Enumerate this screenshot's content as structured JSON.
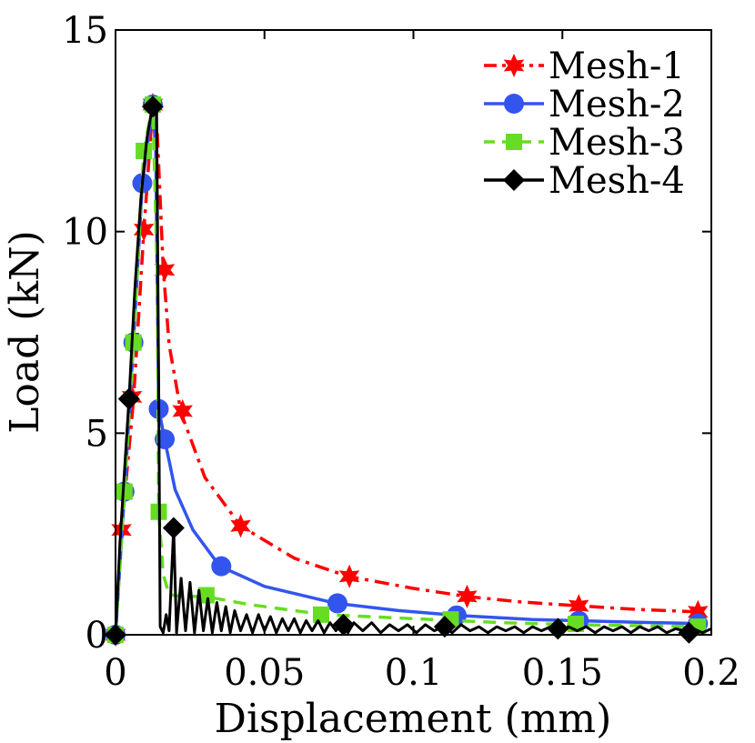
{
  "chart_data": {
    "type": "line",
    "title": "",
    "xlabel": "Displacement (mm)",
    "ylabel": "Load (kN)",
    "xlim": [
      0,
      0.2
    ],
    "ylim": [
      0,
      15
    ],
    "grid": false,
    "legend_position": "top-right",
    "x_ticks": [
      0,
      0.05,
      0.1,
      0.15,
      0.2
    ],
    "x_tick_labels": [
      "0",
      "0.05",
      "0.1",
      "0.15",
      "0.2"
    ],
    "y_ticks": [
      0,
      5,
      10,
      15
    ],
    "y_tick_labels": [
      "0",
      "5",
      "10",
      "15"
    ],
    "series": [
      {
        "name": "Mesh-1",
        "color": "#ff0000",
        "dash": "dashdot",
        "marker": "star",
        "line": [
          [
            0,
            0
          ],
          [
            0.002,
            2.6
          ],
          [
            0.006,
            5.8
          ],
          [
            0.0095,
            10.0
          ],
          [
            0.0125,
            13.1
          ],
          [
            0.014,
            12.5
          ],
          [
            0.016,
            9.1
          ],
          [
            0.018,
            7.2
          ],
          [
            0.022,
            5.5
          ],
          [
            0.03,
            3.9
          ],
          [
            0.042,
            2.7
          ],
          [
            0.06,
            1.9
          ],
          [
            0.078,
            1.45
          ],
          [
            0.1,
            1.15
          ],
          [
            0.118,
            0.95
          ],
          [
            0.135,
            0.82
          ],
          [
            0.155,
            0.72
          ],
          [
            0.175,
            0.63
          ],
          [
            0.195,
            0.57
          ]
        ],
        "markers": [
          [
            0,
            0
          ],
          [
            0.002,
            2.6
          ],
          [
            0.0055,
            5.9
          ],
          [
            0.0095,
            10.05
          ],
          [
            0.0125,
            13.15
          ],
          [
            0.0165,
            9.05
          ],
          [
            0.0225,
            5.55
          ],
          [
            0.042,
            2.7
          ],
          [
            0.0785,
            1.45
          ],
          [
            0.118,
            0.95
          ],
          [
            0.1555,
            0.72
          ],
          [
            0.1955,
            0.57
          ]
        ]
      },
      {
        "name": "Mesh-2",
        "color": "#3355ee",
        "dash": "solid",
        "marker": "circle",
        "line": [
          [
            0,
            0
          ],
          [
            0.003,
            3.5
          ],
          [
            0.006,
            7.25
          ],
          [
            0.009,
            11.2
          ],
          [
            0.0125,
            13.15
          ],
          [
            0.0135,
            12.0
          ],
          [
            0.0145,
            5.6
          ],
          [
            0.0165,
            4.85
          ],
          [
            0.02,
            3.6
          ],
          [
            0.026,
            2.6
          ],
          [
            0.035,
            1.7
          ],
          [
            0.05,
            1.2
          ],
          [
            0.074,
            0.78
          ],
          [
            0.095,
            0.6
          ],
          [
            0.115,
            0.48
          ],
          [
            0.14,
            0.38
          ],
          [
            0.155,
            0.35
          ],
          [
            0.175,
            0.31
          ],
          [
            0.195,
            0.28
          ]
        ],
        "markers": [
          [
            0,
            0
          ],
          [
            0.003,
            3.55
          ],
          [
            0.006,
            7.25
          ],
          [
            0.009,
            11.2
          ],
          [
            0.0125,
            13.15
          ],
          [
            0.0145,
            5.6
          ],
          [
            0.0165,
            4.85
          ],
          [
            0.0355,
            1.7
          ],
          [
            0.0745,
            0.78
          ],
          [
            0.1145,
            0.48
          ],
          [
            0.1555,
            0.35
          ],
          [
            0.1955,
            0.28
          ]
        ]
      },
      {
        "name": "Mesh-3",
        "color": "#66dd22",
        "dash": "dashed",
        "marker": "square",
        "line": [
          [
            0,
            0
          ],
          [
            0.003,
            3.55
          ],
          [
            0.006,
            7.25
          ],
          [
            0.0095,
            12.0
          ],
          [
            0.0125,
            13.15
          ],
          [
            0.014,
            9.0
          ],
          [
            0.0145,
            3.05
          ],
          [
            0.016,
            1.5
          ],
          [
            0.018,
            1.0
          ],
          [
            0.022,
            0.95
          ],
          [
            0.03,
            0.95
          ],
          [
            0.045,
            0.75
          ],
          [
            0.07,
            0.5
          ],
          [
            0.1,
            0.4
          ],
          [
            0.13,
            0.3
          ],
          [
            0.155,
            0.25
          ],
          [
            0.195,
            0.2
          ]
        ],
        "markers": [
          [
            0,
            0
          ],
          [
            0.003,
            3.55
          ],
          [
            0.006,
            7.25
          ],
          [
            0.0095,
            12.0
          ],
          [
            0.0125,
            13.15
          ],
          [
            0.0145,
            3.05
          ],
          [
            0.0305,
            0.98
          ],
          [
            0.069,
            0.5
          ],
          [
            0.1125,
            0.38
          ],
          [
            0.1545,
            0.27
          ],
          [
            0.1955,
            0.2
          ]
        ]
      },
      {
        "name": "Mesh-4",
        "color": "#000000",
        "dash": "solid",
        "marker": "diamond",
        "line": [
          [
            0,
            0
          ],
          [
            0.0015,
            2.3
          ],
          [
            0.0045,
            5.8
          ],
          [
            0.0065,
            8.6
          ],
          [
            0.0085,
            10.8
          ],
          [
            0.0105,
            12.3
          ],
          [
            0.0125,
            13.15
          ],
          [
            0.0138,
            13.05
          ],
          [
            0.0145,
            6.0
          ],
          [
            0.015,
            0.2
          ],
          [
            0.016,
            0.05
          ],
          [
            0.017,
            0.5
          ],
          [
            0.018,
            0.1
          ],
          [
            0.0195,
            2.65
          ],
          [
            0.0205,
            0.05
          ],
          [
            0.022,
            1.4
          ],
          [
            0.0235,
            0.1
          ],
          [
            0.025,
            1.3
          ],
          [
            0.0265,
            0.05
          ],
          [
            0.028,
            1.1
          ],
          [
            0.0295,
            0.1
          ],
          [
            0.031,
            0.9
          ],
          [
            0.0325,
            0.05
          ],
          [
            0.034,
            0.8
          ],
          [
            0.0355,
            0.1
          ],
          [
            0.037,
            0.7
          ],
          [
            0.0385,
            0.05
          ],
          [
            0.04,
            0.6
          ],
          [
            0.042,
            0.1
          ],
          [
            0.044,
            0.5
          ],
          [
            0.046,
            0.05
          ],
          [
            0.048,
            0.5
          ],
          [
            0.05,
            0.1
          ],
          [
            0.052,
            0.45
          ],
          [
            0.054,
            0.05
          ],
          [
            0.056,
            0.4
          ],
          [
            0.058,
            0.1
          ],
          [
            0.06,
            0.4
          ],
          [
            0.062,
            0.05
          ],
          [
            0.064,
            0.35
          ],
          [
            0.066,
            0.1
          ],
          [
            0.068,
            0.35
          ],
          [
            0.07,
            0.05
          ],
          [
            0.072,
            0.3
          ],
          [
            0.074,
            0.1
          ],
          [
            0.076,
            0.3
          ],
          [
            0.078,
            0.05
          ],
          [
            0.08,
            0.3
          ],
          [
            0.083,
            0.1
          ],
          [
            0.086,
            0.3
          ],
          [
            0.089,
            0.05
          ],
          [
            0.092,
            0.25
          ],
          [
            0.095,
            0.1
          ],
          [
            0.098,
            0.25
          ],
          [
            0.101,
            0.05
          ],
          [
            0.104,
            0.25
          ],
          [
            0.107,
            0.1
          ],
          [
            0.11,
            0.2
          ],
          [
            0.113,
            0.05
          ],
          [
            0.116,
            0.25
          ],
          [
            0.119,
            0.1
          ],
          [
            0.122,
            0.2
          ],
          [
            0.125,
            0.05
          ],
          [
            0.128,
            0.2
          ],
          [
            0.131,
            0.1
          ],
          [
            0.134,
            0.2
          ],
          [
            0.137,
            0.05
          ],
          [
            0.14,
            0.2
          ],
          [
            0.143,
            0.1
          ],
          [
            0.146,
            0.2
          ],
          [
            0.149,
            0.05
          ],
          [
            0.152,
            0.2
          ],
          [
            0.155,
            0.1
          ],
          [
            0.158,
            0.2
          ],
          [
            0.161,
            0.05
          ],
          [
            0.164,
            0.2
          ],
          [
            0.167,
            0.1
          ],
          [
            0.17,
            0.2
          ],
          [
            0.173,
            0.05
          ],
          [
            0.176,
            0.2
          ],
          [
            0.179,
            0.1
          ],
          [
            0.182,
            0.2
          ],
          [
            0.185,
            0.05
          ],
          [
            0.188,
            0.15
          ],
          [
            0.191,
            0.1
          ],
          [
            0.194,
            0.15
          ],
          [
            0.197,
            0.05
          ],
          [
            0.2,
            0.15
          ]
        ],
        "markers": [
          [
            0,
            0
          ],
          [
            0.0045,
            5.85
          ],
          [
            0.0125,
            13.1
          ],
          [
            0.0195,
            2.65
          ],
          [
            0.0765,
            0.25
          ],
          [
            0.1105,
            0.2
          ],
          [
            0.1485,
            0.15
          ],
          [
            0.1925,
            0.05
          ]
        ]
      }
    ]
  }
}
